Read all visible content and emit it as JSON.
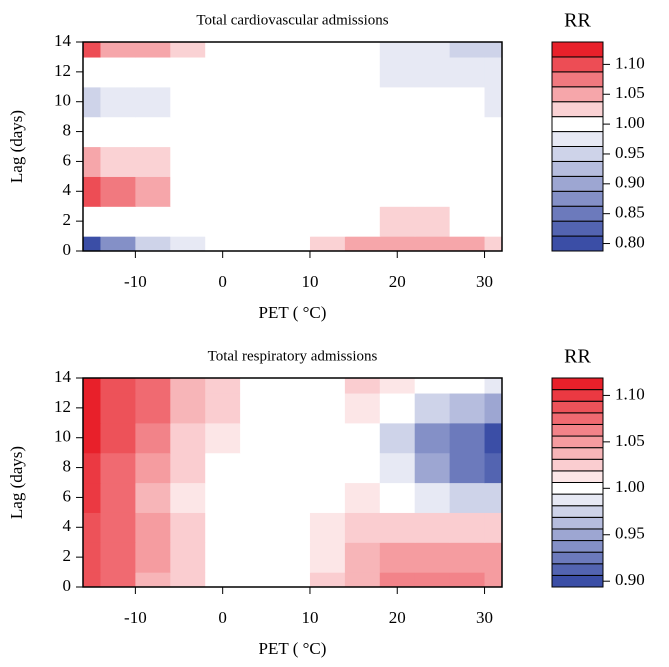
{
  "chart_data": [
    {
      "type": "contour",
      "title": "Total cardiovascular admissions",
      "xlabel": "PET ( °C)",
      "ylabel": "Lag (days)",
      "colorbar_title": "RR",
      "xlim": [
        -16,
        32
      ],
      "ylim": [
        0,
        14
      ],
      "xticks": [
        -10,
        0,
        10,
        20,
        30
      ],
      "yticks": [
        0,
        2,
        4,
        6,
        8,
        10,
        12,
        14
      ],
      "x": [
        -16,
        -12,
        -8,
        -4,
        0,
        4,
        8,
        12,
        16,
        20,
        24,
        28,
        32
      ],
      "y": [
        0,
        2,
        4,
        6,
        8,
        10,
        12,
        14
      ],
      "z": [
        [
          0.8,
          0.88,
          0.94,
          0.97,
          0.99,
          1.0,
          1.0,
          1.02,
          1.05,
          1.06,
          1.05,
          1.04,
          1.03
        ],
        [
          1.0,
          0.99,
          0.99,
          1.0,
          1.0,
          1.0,
          1.0,
          1.0,
          1.01,
          1.02,
          1.02,
          1.01,
          1.01
        ],
        [
          1.09,
          1.07,
          1.04,
          1.01,
          1.0,
          1.0,
          1.0,
          1.0,
          1.0,
          1.0,
          1.0,
          1.0,
          1.0
        ],
        [
          1.04,
          1.03,
          1.02,
          1.01,
          1.0,
          1.0,
          1.0,
          1.0,
          1.0,
          1.0,
          1.0,
          1.0,
          1.0
        ],
        [
          0.99,
          0.99,
          1.0,
          1.0,
          1.0,
          1.0,
          1.0,
          1.0,
          1.0,
          1.0,
          1.0,
          1.0,
          1.0
        ],
        [
          0.96,
          0.97,
          0.98,
          0.99,
          1.0,
          1.0,
          1.0,
          1.0,
          1.0,
          1.0,
          0.99,
          0.99,
          0.98
        ],
        [
          1.0,
          1.0,
          1.0,
          1.0,
          1.0,
          1.0,
          1.0,
          1.0,
          0.99,
          0.98,
          0.98,
          0.97,
          0.97
        ],
        [
          1.1,
          1.06,
          1.04,
          1.02,
          1.01,
          1.0,
          1.0,
          1.0,
          0.99,
          0.98,
          0.97,
          0.96,
          0.96
        ]
      ],
      "levels": [
        0.7875,
        0.8125,
        0.8375,
        0.8625,
        0.8875,
        0.9125,
        0.9375,
        0.9625,
        0.9875,
        1.0125,
        1.0375,
        1.0625,
        1.0875,
        1.1125,
        1.1375
      ],
      "zticks": [
        {
          "value": 0.8,
          "label": "0.80"
        },
        0.85,
        {
          "value": 0.9,
          "label": "0.90"
        },
        0.95,
        {
          "value": 1.0,
          "label": "1.00"
        },
        1.05,
        {
          "value": 1.1,
          "label": "1.10"
        }
      ],
      "low_color": "#3b4ea6",
      "high_color": "#e8202a"
    },
    {
      "type": "contour",
      "title": "Total respiratory admissions",
      "xlabel": "PET ( °C)",
      "ylabel": "Lag (days)",
      "colorbar_title": "RR",
      "xlim": [
        -16,
        32
      ],
      "ylim": [
        0,
        14
      ],
      "xticks": [
        -10,
        0,
        10,
        20,
        30
      ],
      "yticks": [
        0,
        2,
        4,
        6,
        8,
        10,
        12,
        14
      ],
      "x": [
        -16,
        -12,
        -8,
        -4,
        0,
        4,
        8,
        12,
        16,
        20,
        24,
        28,
        32
      ],
      "y": [
        0,
        2,
        4,
        6,
        8,
        10,
        12,
        14
      ],
      "z": [
        [
          1.09,
          1.07,
          1.04,
          1.02,
          1.0,
          1.0,
          1.0,
          1.02,
          1.04,
          1.06,
          1.06,
          1.06,
          1.05
        ],
        [
          1.09,
          1.07,
          1.05,
          1.03,
          1.0,
          1.0,
          1.0,
          1.01,
          1.04,
          1.05,
          1.05,
          1.05,
          1.05
        ],
        [
          1.09,
          1.07,
          1.05,
          1.02,
          1.0,
          1.0,
          1.0,
          1.01,
          1.03,
          1.03,
          1.03,
          1.03,
          1.03
        ],
        [
          1.1,
          1.08,
          1.04,
          1.01,
          1.0,
          1.0,
          1.0,
          1.0,
          1.01,
          1.0,
          0.99,
          0.98,
          0.97
        ],
        [
          1.1,
          1.08,
          1.05,
          1.02,
          1.0,
          1.0,
          1.0,
          1.0,
          1.0,
          0.99,
          0.95,
          0.93,
          0.91
        ],
        [
          1.11,
          1.09,
          1.06,
          1.03,
          1.01,
          1.0,
          1.0,
          1.0,
          1.0,
          0.98,
          0.94,
          0.92,
          0.9
        ],
        [
          1.11,
          1.09,
          1.07,
          1.04,
          1.02,
          1.0,
          1.0,
          1.0,
          1.01,
          1.0,
          0.98,
          0.96,
          0.95
        ],
        [
          1.11,
          1.09,
          1.07,
          1.04,
          1.02,
          1.0,
          1.0,
          1.0,
          1.02,
          1.01,
          1.0,
          1.0,
          0.99
        ]
      ],
      "levels": [
        0.89375,
        0.90625,
        0.91875,
        0.93125,
        0.94375,
        0.95625,
        0.96875,
        0.98125,
        0.99375,
        1.00625,
        1.01875,
        1.03125,
        1.04375,
        1.05625,
        1.06875,
        1.08125,
        1.09375,
        1.10625,
        1.11875
      ],
      "zticks": [
        {
          "value": 0.9,
          "label": "0.90"
        },
        0.95,
        {
          "value": 1.0,
          "label": "1.00"
        },
        1.05,
        {
          "value": 1.1,
          "label": "1.10"
        }
      ],
      "low_color": "#3b4ea6",
      "high_color": "#e8202a"
    }
  ]
}
